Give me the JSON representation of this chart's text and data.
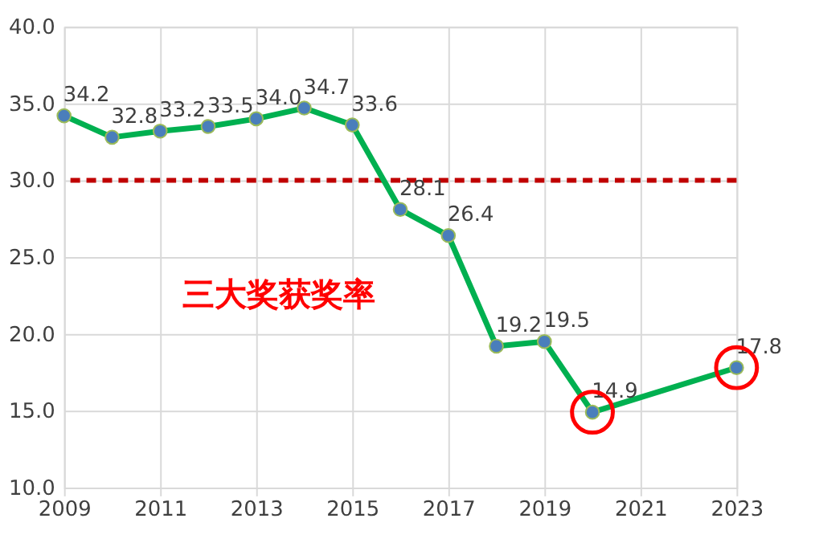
{
  "chart_data": {
    "type": "line",
    "x": [
      2009,
      2010,
      2011,
      2012,
      2013,
      2014,
      2015,
      2016,
      2017,
      2018,
      2019,
      2020,
      2023
    ],
    "series": [
      {
        "color": "#00b050",
        "values": [
          34.2,
          32.8,
          33.2,
          33.5,
          34.0,
          34.7,
          33.6,
          28.1,
          26.4,
          19.2,
          19.5,
          14.9,
          17.8
        ]
      }
    ],
    "value_labels": [
      "34.2",
      "32.8",
      "33.2",
      "33.5",
      "34.0",
      "34.7",
      "33.6",
      "28.1",
      "26.4",
      "19.2",
      "19.5",
      "14.9",
      "17.8"
    ],
    "marker": "circle",
    "grid": true,
    "xlim": [
      2009,
      2023
    ],
    "xticks": [
      2009,
      2011,
      2013,
      2015,
      2017,
      2019,
      2021,
      2023
    ],
    "ylim": [
      10,
      40
    ],
    "yticks": [
      {
        "value": 10,
        "label": "10.0"
      },
      {
        "value": 15,
        "label": "15.0"
      },
      {
        "value": 20,
        "label": "20.0"
      },
      {
        "value": 25,
        "label": "25.0"
      },
      {
        "value": 30,
        "label": "30.0"
      },
      {
        "value": 35,
        "label": "35.0"
      },
      {
        "value": 40,
        "label": "40.0"
      }
    ],
    "ref_lines": [
      {
        "axis": "y",
        "value": 30,
        "color": "#c00000",
        "line_style": "dashed"
      }
    ],
    "annotations": [
      "三大奖获奖率"
    ]
  }
}
